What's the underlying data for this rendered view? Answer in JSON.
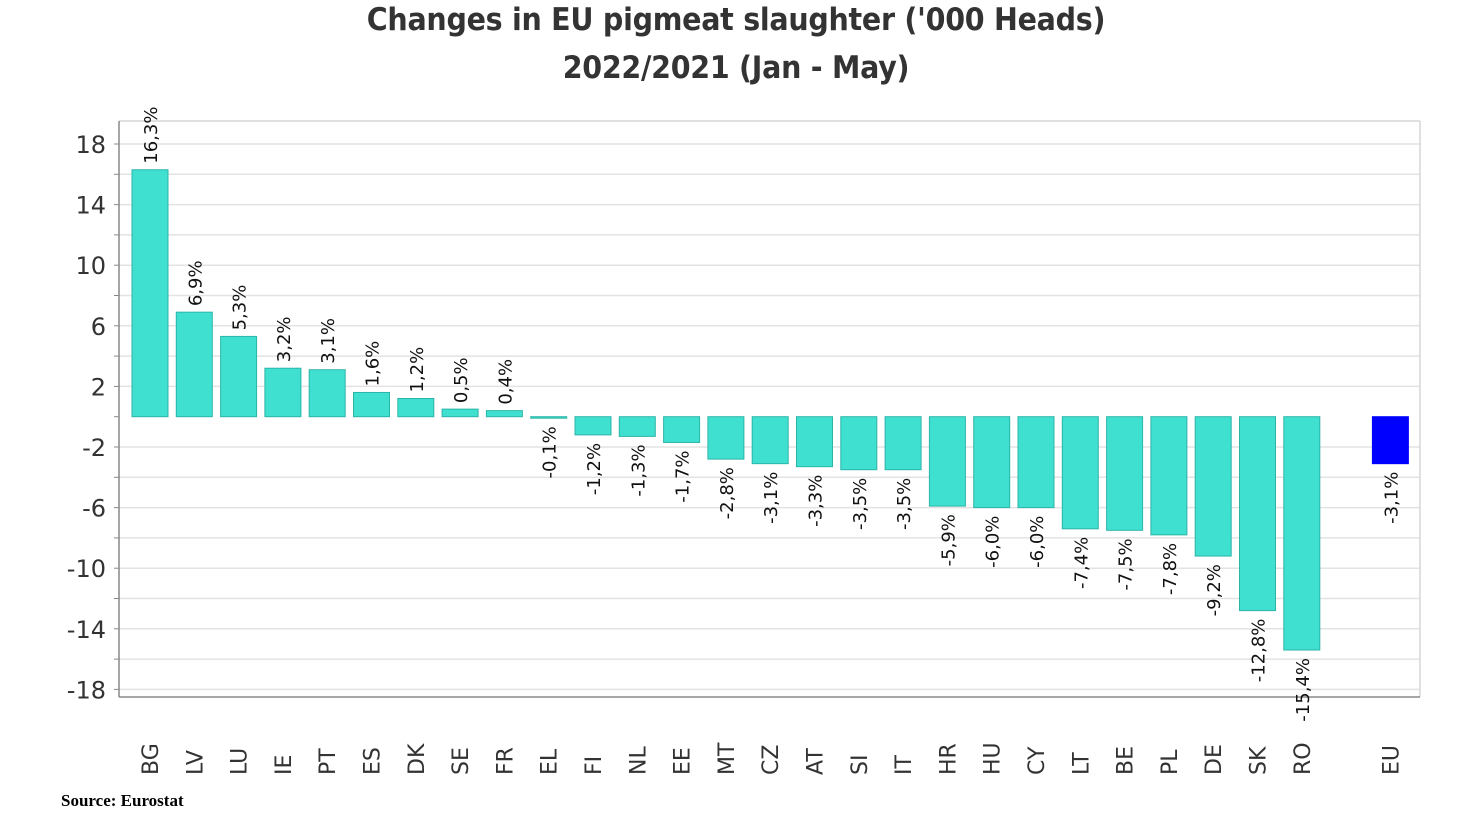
{
  "chart_data": {
    "type": "bar",
    "title": "Changes in EU pigmeat slaughter ('000 Heads)",
    "subtitle": "2022/2021 (Jan - May)",
    "xlabel": "",
    "ylabel": "",
    "categories": [
      "BG",
      "LV",
      "LU",
      "IE",
      "PT",
      "ES",
      "DK",
      "SE",
      "FR",
      "EL",
      "FI",
      "NL",
      "EE",
      "MT",
      "CZ",
      "AT",
      "SI",
      "IT",
      "HR",
      "HU",
      "CY",
      "LT",
      "BE",
      "PL",
      "DE",
      "SK",
      "RO",
      "EU"
    ],
    "values": [
      16.3,
      6.9,
      5.3,
      3.2,
      3.1,
      1.6,
      1.2,
      0.5,
      0.4,
      -0.1,
      -1.2,
      -1.3,
      -1.7,
      -2.8,
      -3.1,
      -3.3,
      -3.5,
      -3.5,
      -5.9,
      -6.0,
      -6.0,
      -7.4,
      -7.5,
      -7.8,
      -9.2,
      -12.8,
      -15.4,
      -3.1
    ],
    "data_labels": [
      "16,3%",
      "6,9%",
      "5,3%",
      "3,2%",
      "3,1%",
      "1,6%",
      "1,2%",
      "0,5%",
      "0,4%",
      "-0,1%",
      "-1,2%",
      "-1,3%",
      "-1,7%",
      "-2,8%",
      "-3,1%",
      "-3,3%",
      "-3,5%",
      "-3,5%",
      "-5,9%",
      "-6,0%",
      "-6,0%",
      "-7,4%",
      "-7,5%",
      "-7,8%",
      "-9,2%",
      "-12,8%",
      "-15,4%",
      "-3,1%"
    ],
    "highlight_category": "EU",
    "colors": {
      "bar": "#40E0D0",
      "bar_edge": "#2BB5A8",
      "highlight": "#0000FF",
      "grid": "#E3E3E3",
      "axis": "#888888",
      "text": "#333333"
    },
    "yticks": [
      18,
      14,
      10,
      6,
      2,
      -2,
      -6,
      -10,
      -14,
      -18
    ],
    "ylim": [
      -19,
      19.5
    ],
    "grid": true,
    "legend": "none"
  },
  "footer": {
    "source": "Source: Eurostat"
  }
}
